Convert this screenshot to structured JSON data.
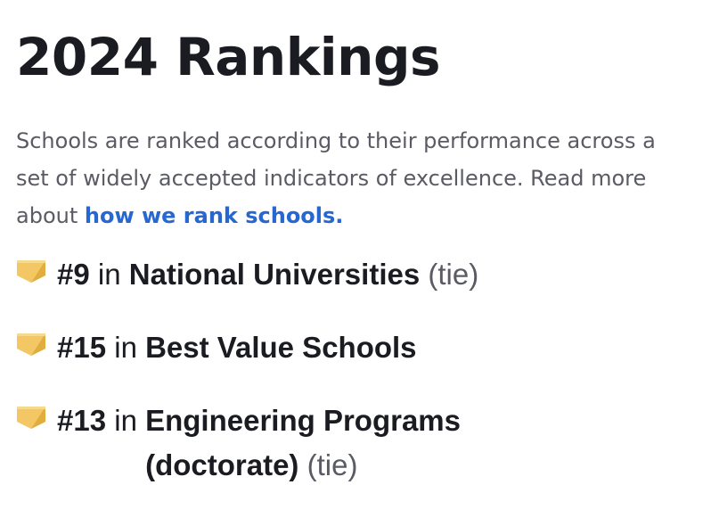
{
  "header": {
    "title": "2024 Rankings"
  },
  "intro": {
    "text": "Schools are ranked according to their performance across a set of widely accepted indicators of excellence. Read more about ",
    "link_text": "how we rank schools."
  },
  "rankings": [
    {
      "number": "#9",
      "in_label": "in",
      "category": "National Universities",
      "tie": "(tie)"
    },
    {
      "number": "#15",
      "in_label": "in",
      "category": "Best Value Schools",
      "tie": ""
    },
    {
      "number": "#13",
      "in_label": "in",
      "category": "Engineering Programs (doctorate)",
      "tie": "(tie)"
    }
  ],
  "icons": {
    "rank_badge": "ribbon-badge-icon",
    "badge_color": "#f3c763",
    "badge_shade": "#e2ad3f"
  },
  "colors": {
    "text": "#1b1c22",
    "muted": "#5a5b63",
    "link": "#2767d1"
  }
}
